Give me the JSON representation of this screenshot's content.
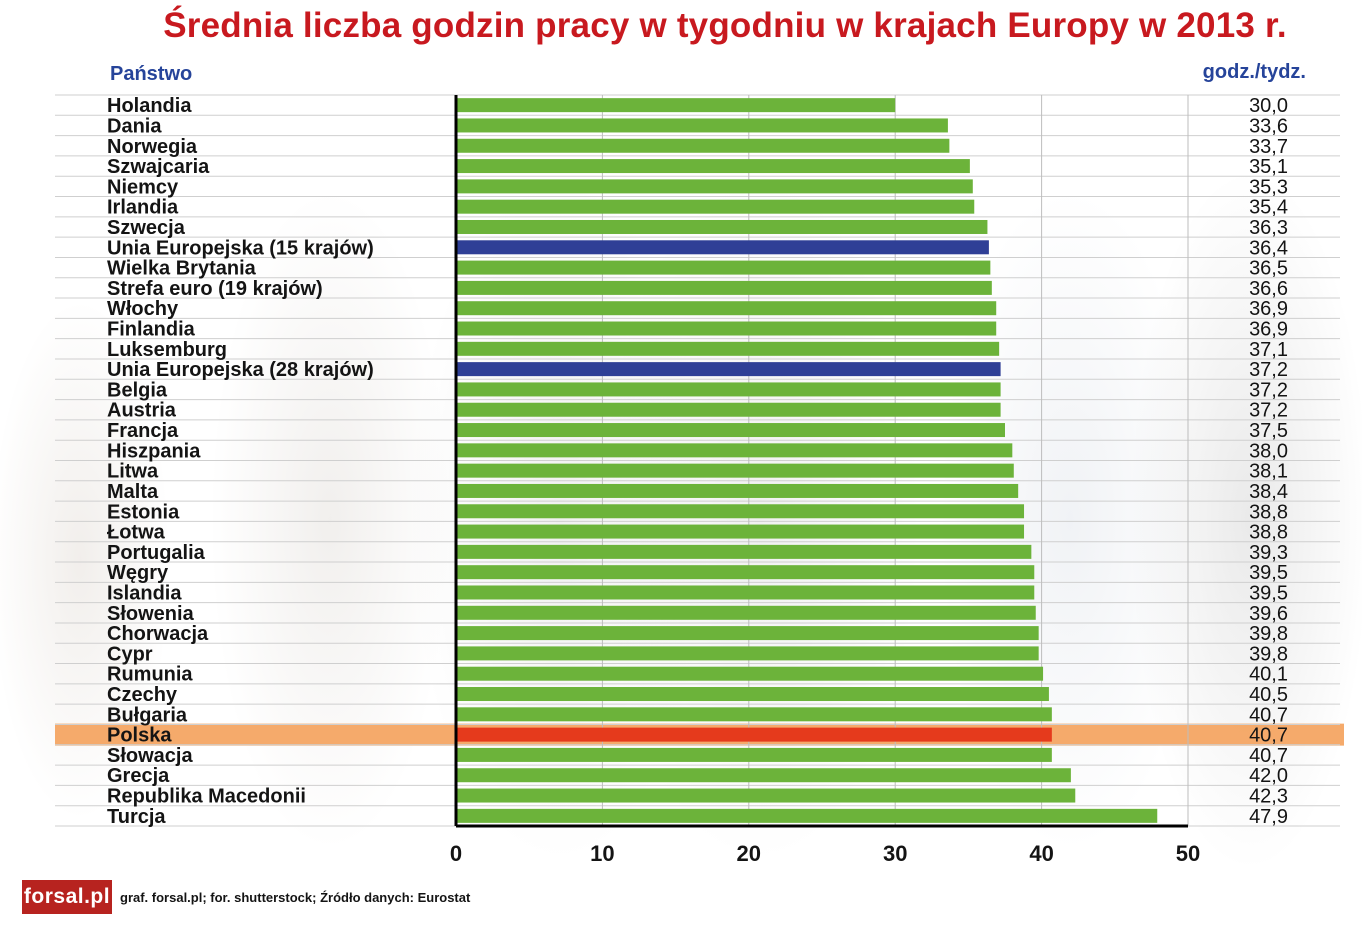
{
  "title": "Średnia liczba godzin pracy w tygodniu w krajach Europy w 2013 r.",
  "header_country": "Państwo",
  "header_unit": "godz./tydz.",
  "footer": {
    "logo": "forsal.pl",
    "source": "graf. forsal.pl; for. shutterstock;  Źródło danych: Eurostat"
  },
  "colors": {
    "bar": "#6cb33a",
    "bar_eu": "#2f3f96",
    "bar_highlight": "#e53a1c",
    "row_highlight": "#f4a15b",
    "title": "#c8191f",
    "header": "#26449a"
  },
  "chart_data": {
    "type": "bar",
    "orientation": "horizontal",
    "categories": [
      "Holandia",
      "Dania",
      "Norwegia",
      "Szwajcaria",
      "Niemcy",
      "Irlandia",
      "Szwecja",
      "Unia Europejska (15 krajów)",
      "Wielka Brytania",
      "Strefa euro (19 krajów)",
      "Włochy",
      "Finlandia",
      "Luksemburg",
      "Unia Europejska (28 krajów)",
      "Belgia",
      "Austria",
      "Francja",
      "Hiszpania",
      "Litwa",
      "Malta",
      "Estonia",
      "Łotwa",
      "Portugalia",
      "Węgry",
      "Islandia",
      "Słowenia",
      "Chorwacja",
      "Cypr",
      "Rumunia",
      "Czechy",
      "Bułgaria",
      "Polska",
      "Słowacja",
      "Grecja",
      "Republika Macedonii",
      "Turcja"
    ],
    "values": [
      30.0,
      33.6,
      33.7,
      35.1,
      35.3,
      35.4,
      36.3,
      36.4,
      36.5,
      36.6,
      36.9,
      36.9,
      37.1,
      37.2,
      37.2,
      37.2,
      37.5,
      38.0,
      38.1,
      38.4,
      38.8,
      38.8,
      39.3,
      39.5,
      39.5,
      39.6,
      39.8,
      39.8,
      40.1,
      40.5,
      40.7,
      40.7,
      40.7,
      42.0,
      42.3,
      47.9
    ],
    "value_labels": [
      "30,0",
      "33,6",
      "33,7",
      "35,1",
      "35,3",
      "35,4",
      "36,3",
      "36,4",
      "36,5",
      "36,6",
      "36,9",
      "36,9",
      "37,1",
      "37,2",
      "37,2",
      "37,2",
      "37,5",
      "38,0",
      "38,1",
      "38,4",
      "38,8",
      "38,8",
      "39,3",
      "39,5",
      "39,5",
      "39,6",
      "39,8",
      "39,8",
      "40,1",
      "40,5",
      "40,7",
      "40,7",
      "40,7",
      "42,0",
      "42,3",
      "47,9"
    ],
    "bar_kind": [
      "normal",
      "normal",
      "normal",
      "normal",
      "normal",
      "normal",
      "normal",
      "eu",
      "normal",
      "normal",
      "normal",
      "normal",
      "normal",
      "eu",
      "normal",
      "normal",
      "normal",
      "normal",
      "normal",
      "normal",
      "normal",
      "normal",
      "normal",
      "normal",
      "normal",
      "normal",
      "normal",
      "normal",
      "normal",
      "normal",
      "normal",
      "highlight",
      "normal",
      "normal",
      "normal",
      "normal"
    ],
    "xlim": [
      0,
      50
    ],
    "xticks": [
      "0",
      "10",
      "20",
      "30",
      "40",
      "50"
    ],
    "grid": true
  }
}
